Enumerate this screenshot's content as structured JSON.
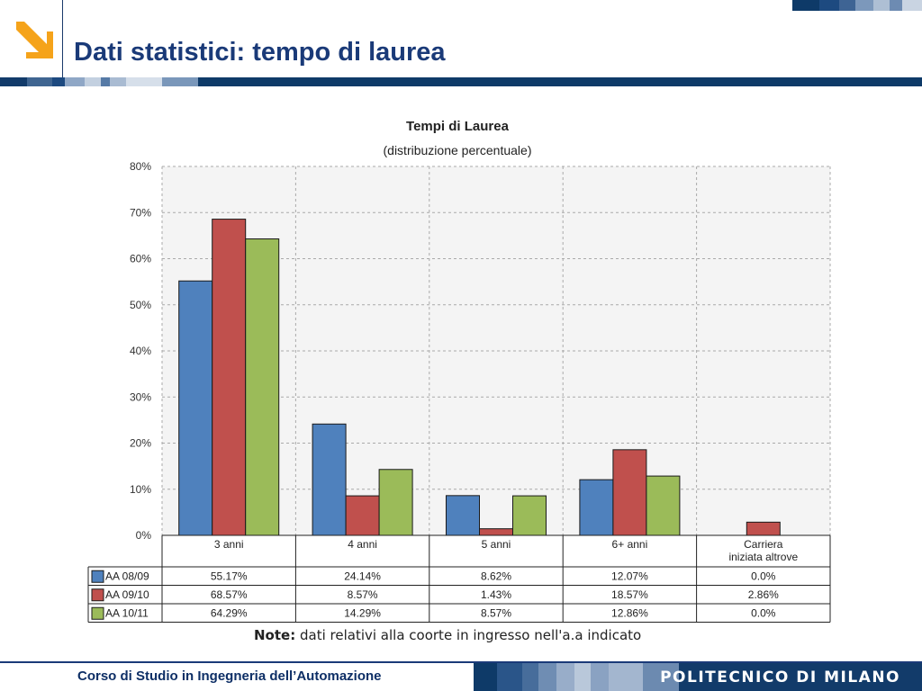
{
  "header": {
    "title": "Dati statistici: tempo di laurea"
  },
  "colors": {
    "brand_navy": "#0e3a68",
    "logo_orange": "#f5a31a",
    "series": [
      "#4f81bd",
      "#c0504d",
      "#9bbb59"
    ]
  },
  "chart_data": {
    "type": "bar",
    "title": "Tempi di Laurea",
    "subtitle": "(distribuzione percentuale)",
    "categories": [
      "3 anni",
      "4 anni",
      "5 anni",
      "6+ anni",
      "Carriera iniziata altrove"
    ],
    "ylim": [
      0,
      80
    ],
    "yticks": [
      "0%",
      "10%",
      "20%",
      "30%",
      "40%",
      "50%",
      "60%",
      "70%",
      "80%"
    ],
    "grid": true,
    "legend": "table-left",
    "series": [
      {
        "name": "AA 08/09",
        "values": [
          55.17,
          24.14,
          8.62,
          12.07,
          0.0
        ],
        "labels": [
          "55.17%",
          "24.14%",
          "8.62%",
          "12.07%",
          "0.0%"
        ]
      },
      {
        "name": "AA 09/10",
        "values": [
          68.57,
          8.57,
          1.43,
          18.57,
          2.86
        ],
        "labels": [
          "68.57%",
          "8.57%",
          "1.43%",
          "18.57%",
          "2.86%"
        ]
      },
      {
        "name": "AA 10/11",
        "values": [
          64.29,
          14.29,
          8.57,
          12.86,
          0.0
        ],
        "labels": [
          "64.29%",
          "14.29%",
          "8.57%",
          "12.86%",
          "0.0%"
        ]
      }
    ]
  },
  "note": {
    "label": "Note:",
    "text": "dati relativi alla coorte in ingresso nell'a.a indicato"
  },
  "footer": {
    "course": "Corso di Studio in Ingegneria dell’Automazione",
    "org": "POLITECNICO DI MILANO"
  }
}
